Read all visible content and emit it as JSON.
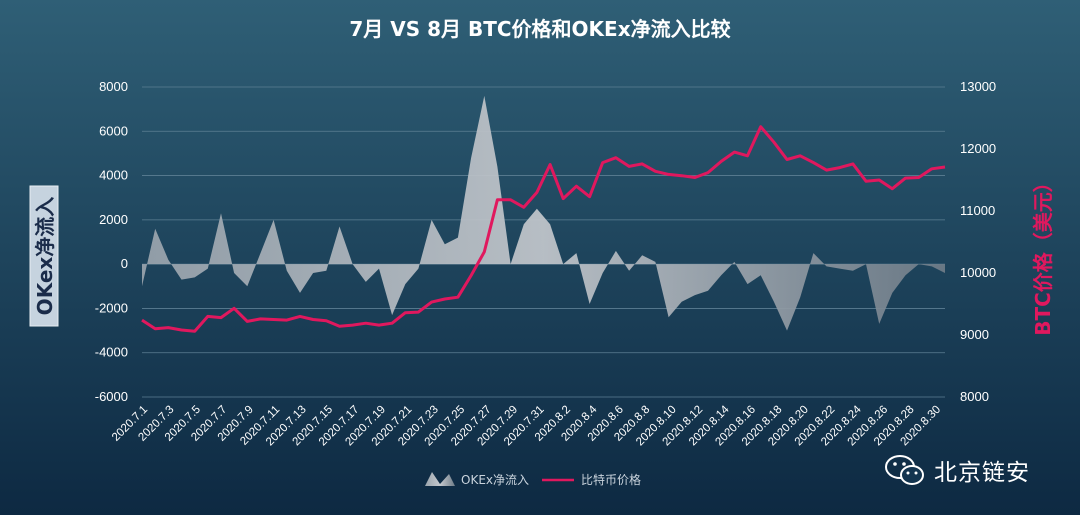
{
  "chart_data": {
    "type": "area+line",
    "title": "7月 VS 8月 BTC价格和OKEx净流入比较",
    "ylabel_left": "OKex净流入",
    "ylabel_right": "BTC价格（美元）",
    "y_left_lim": [
      -6000,
      8000
    ],
    "y_left_ticks": [
      "8000",
      "6000",
      "4000",
      "2000",
      "0",
      "-2000",
      "-4000",
      "-6000"
    ],
    "y_right_lim": [
      8000,
      13000
    ],
    "y_right_ticks": [
      "13000",
      "12000",
      "11000",
      "10000",
      "9000",
      "8000"
    ],
    "x_tick_labels": [
      "2020.7.1",
      "2020.7.3",
      "2020.7.5",
      "2020.7.7",
      "2020.7.9",
      "2020.7.11",
      "2020.7.13",
      "2020.7.15",
      "2020.7.17",
      "2020.7.19",
      "2020.7.21",
      "2020.7.23",
      "2020.7.25",
      "2020.7.27",
      "2020.7.29",
      "2020.7.31",
      "2020.8.2",
      "2020.8.4",
      "2020.8.6",
      "2020.8.8",
      "2020.8.10",
      "2020.8.12",
      "2020.8.14",
      "2020.8.16",
      "2020.8.18",
      "2020.8.20",
      "2020.8.22",
      "2020.8.24",
      "2020.8.26",
      "2020.8.28",
      "2020.8.30"
    ],
    "grid": "horizontal",
    "legend_position": "bottom",
    "series": [
      {
        "name": "OKEx净流入",
        "type": "area",
        "color": "#b9bec5",
        "values": [
          -1000,
          1600,
          200,
          -700,
          -600,
          -200,
          2300,
          -400,
          -1000,
          500,
          2000,
          -300,
          -1300,
          -400,
          -300,
          1700,
          0,
          -800,
          -200,
          -2300,
          -900,
          -200,
          2000,
          900,
          1200,
          4800,
          7600,
          4400,
          0,
          1800,
          2500,
          1800,
          0,
          500,
          -1800,
          -400,
          600,
          -300,
          400,
          100,
          -2400,
          -1700,
          -1400,
          -1200,
          -500,
          100,
          -900,
          -500,
          -1700,
          -3000,
          -1500,
          500,
          -100,
          -200,
          -300,
          0,
          -2700,
          -1300,
          -500,
          0,
          -100,
          -400
        ]
      },
      {
        "name": "比特币价格",
        "type": "line",
        "color": "#e0185e",
        "values": [
          9240,
          9100,
          9120,
          9080,
          9060,
          9300,
          9280,
          9430,
          9220,
          9260,
          9250,
          9240,
          9300,
          9250,
          9230,
          9140,
          9160,
          9190,
          9160,
          9190,
          9360,
          9370,
          9530,
          9580,
          9610,
          9960,
          10340,
          11180,
          11180,
          11060,
          11300,
          11750,
          11200,
          11400,
          11230,
          11780,
          11860,
          11720,
          11760,
          11640,
          11590,
          11570,
          11540,
          11620,
          11800,
          11950,
          11890,
          12360,
          12110,
          11830,
          11890,
          11780,
          11660,
          11700,
          11760,
          11480,
          11500,
          11360,
          11530,
          11540,
          11680,
          11710
        ]
      }
    ],
    "legend": [
      "OKEx净流入",
      "比特币价格"
    ]
  },
  "watermark": {
    "text": "北京链安",
    "icon": "wechat-icon"
  },
  "colors": {
    "background_top": "#2f5f76",
    "background_bottom": "#0d2942",
    "grid": "#5d7f93",
    "area": "#b9bec5",
    "line": "#e0185e"
  }
}
